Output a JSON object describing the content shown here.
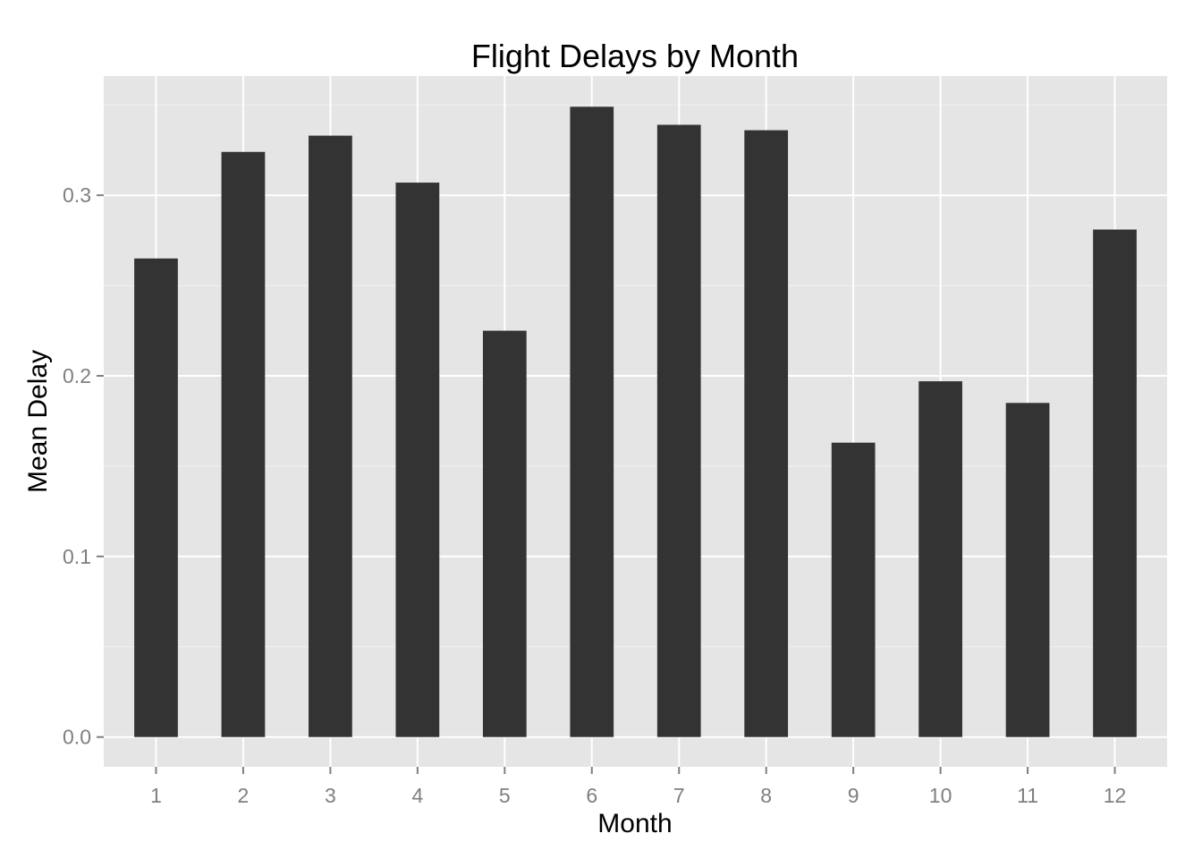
{
  "chart_data": {
    "type": "bar",
    "title": "Flight Delays by Month",
    "xlabel": "Month",
    "ylabel": "Mean Delay",
    "categories": [
      "1",
      "2",
      "3",
      "4",
      "5",
      "6",
      "7",
      "8",
      "9",
      "10",
      "11",
      "12"
    ],
    "values": [
      0.265,
      0.324,
      0.333,
      0.307,
      0.225,
      0.349,
      0.339,
      0.336,
      0.163,
      0.197,
      0.185,
      0.281
    ],
    "ylim": [
      -0.0165,
      0.366
    ],
    "yticks": [
      0.0,
      0.1,
      0.2,
      0.3
    ],
    "ytick_labels": [
      "0.0",
      "0.1",
      "0.2",
      "0.3"
    ],
    "grid": true,
    "legend": "none",
    "colors": {
      "panel_background": "#e5e5e5",
      "grid_major": "#ffffff",
      "grid_minor": "#f2f2f2",
      "bar_fill": "#333333",
      "tick_text": "#7f7f7f",
      "tick_mark": "#7f7f7f"
    }
  }
}
